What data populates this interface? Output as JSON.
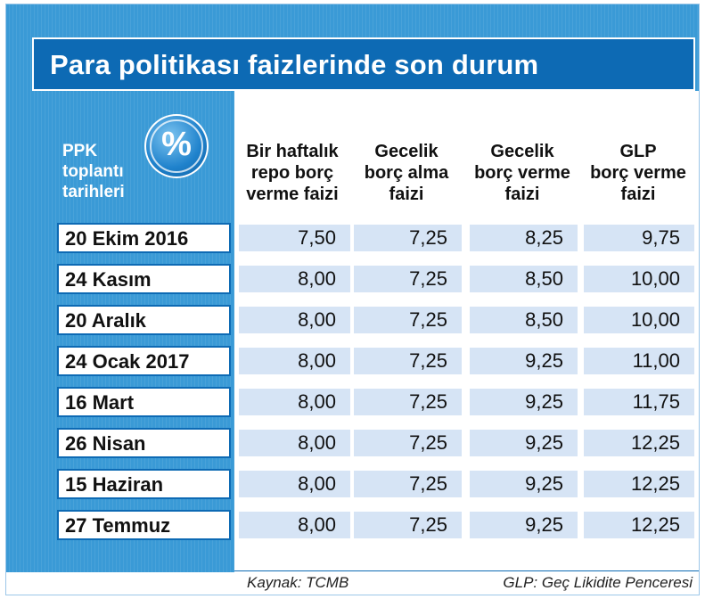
{
  "title": "Para politikası faizlerinde son durum",
  "row_header": [
    "PPK",
    "toplantı",
    "tarihleri"
  ],
  "badge_symbol": "%",
  "columns": [
    [
      "Bir haftalık",
      "repo borç",
      "verme faizi"
    ],
    [
      "Gecelik",
      "borç alma",
      "faizi"
    ],
    [
      "Gecelik",
      "borç verme",
      "faizi"
    ],
    [
      "GLP",
      "borç verme",
      "faizi"
    ]
  ],
  "rows": [
    {
      "date": "20 Ekim 2016",
      "values": [
        "7,50",
        "7,25",
        "8,25",
        "9,75"
      ]
    },
    {
      "date": "24 Kasım",
      "values": [
        "8,00",
        "7,25",
        "8,50",
        "10,00"
      ]
    },
    {
      "date": "20 Aralık",
      "values": [
        "8,00",
        "7,25",
        "8,50",
        "10,00"
      ]
    },
    {
      "date": "24 Ocak 2017",
      "values": [
        "8,00",
        "7,25",
        "9,25",
        "11,00"
      ]
    },
    {
      "date": "16 Mart",
      "values": [
        "8,00",
        "7,25",
        "9,25",
        "11,75"
      ]
    },
    {
      "date": "26 Nisan",
      "values": [
        "8,00",
        "7,25",
        "9,25",
        "12,25"
      ]
    },
    {
      "date": "15 Haziran",
      "values": [
        "8,00",
        "7,25",
        "9,25",
        "12,25"
      ]
    },
    {
      "date": "27 Temmuz",
      "values": [
        "8,00",
        "7,25",
        "9,25",
        "12,25"
      ]
    }
  ],
  "footer": {
    "source": "Kaynak: TCMB",
    "note": "GLP: Geç Likidite Penceresi"
  },
  "colors": {
    "accent": "#0d6ab4",
    "panel": "#3a9ad6",
    "cell": "#d6e4f5"
  }
}
